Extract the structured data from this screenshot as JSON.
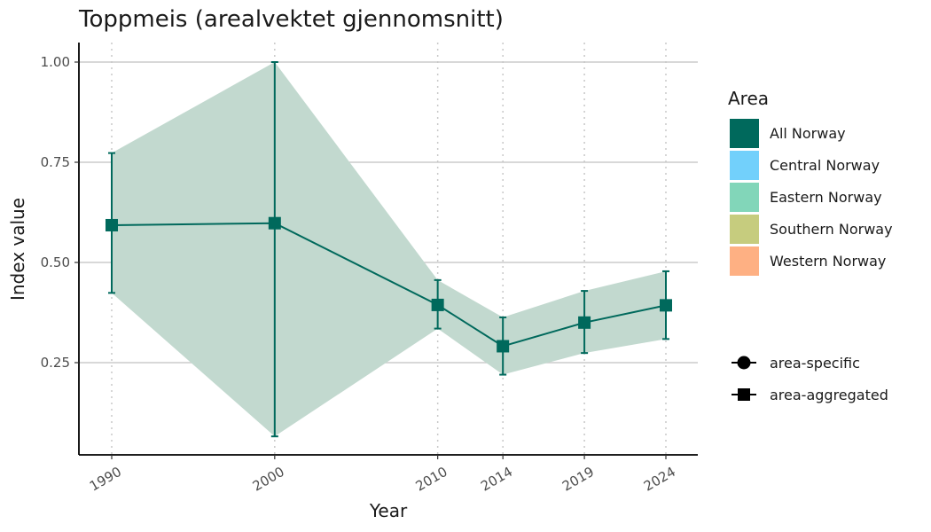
{
  "chart_data": {
    "type": "line",
    "title": "Toppmeis (arealvektet gjennomsnitt)",
    "xlabel": "Year",
    "ylabel": "Index value",
    "x": [
      1990,
      2000,
      2010,
      2014,
      2019,
      2024
    ],
    "x_tick_labels": [
      "1990",
      "2000",
      "2010",
      "2014",
      "2019",
      "2024"
    ],
    "y_ticks": [
      0.25,
      0.5,
      0.75,
      1.0
    ],
    "y_tick_labels": [
      "0.25",
      "0.50",
      "0.75",
      "1.00"
    ],
    "ylim": [
      0.02,
      1.05
    ],
    "xlim": [
      1988,
      2026
    ],
    "series": [
      {
        "name": "All Norway",
        "color": "#00695c",
        "ribbon_color": "#c2d9cf",
        "marker": "square",
        "values": [
          0.593,
          0.598,
          0.394,
          0.291,
          0.35,
          0.393
        ],
        "lower": [
          0.424,
          0.066,
          0.335,
          0.22,
          0.274,
          0.309
        ],
        "upper": [
          0.773,
          1.0,
          0.456,
          0.363,
          0.429,
          0.478
        ]
      }
    ],
    "grid": {
      "horizontal": true,
      "vertical_dotted": true
    },
    "legend": {
      "position": "right",
      "area_title": "Area",
      "area_items": [
        {
          "label": "All Norway",
          "color": "#00695c"
        },
        {
          "label": "Central Norway",
          "color": "#72d0fb"
        },
        {
          "label": "Eastern Norway",
          "color": "#82d6b9"
        },
        {
          "label": "Southern Norway",
          "color": "#c6cc7e"
        },
        {
          "label": "Western Norway",
          "color": "#feb083"
        }
      ],
      "shape_items": [
        {
          "label": "area-specific",
          "icon": "circle"
        },
        {
          "label": "area-aggregated",
          "icon": "square"
        }
      ]
    }
  }
}
